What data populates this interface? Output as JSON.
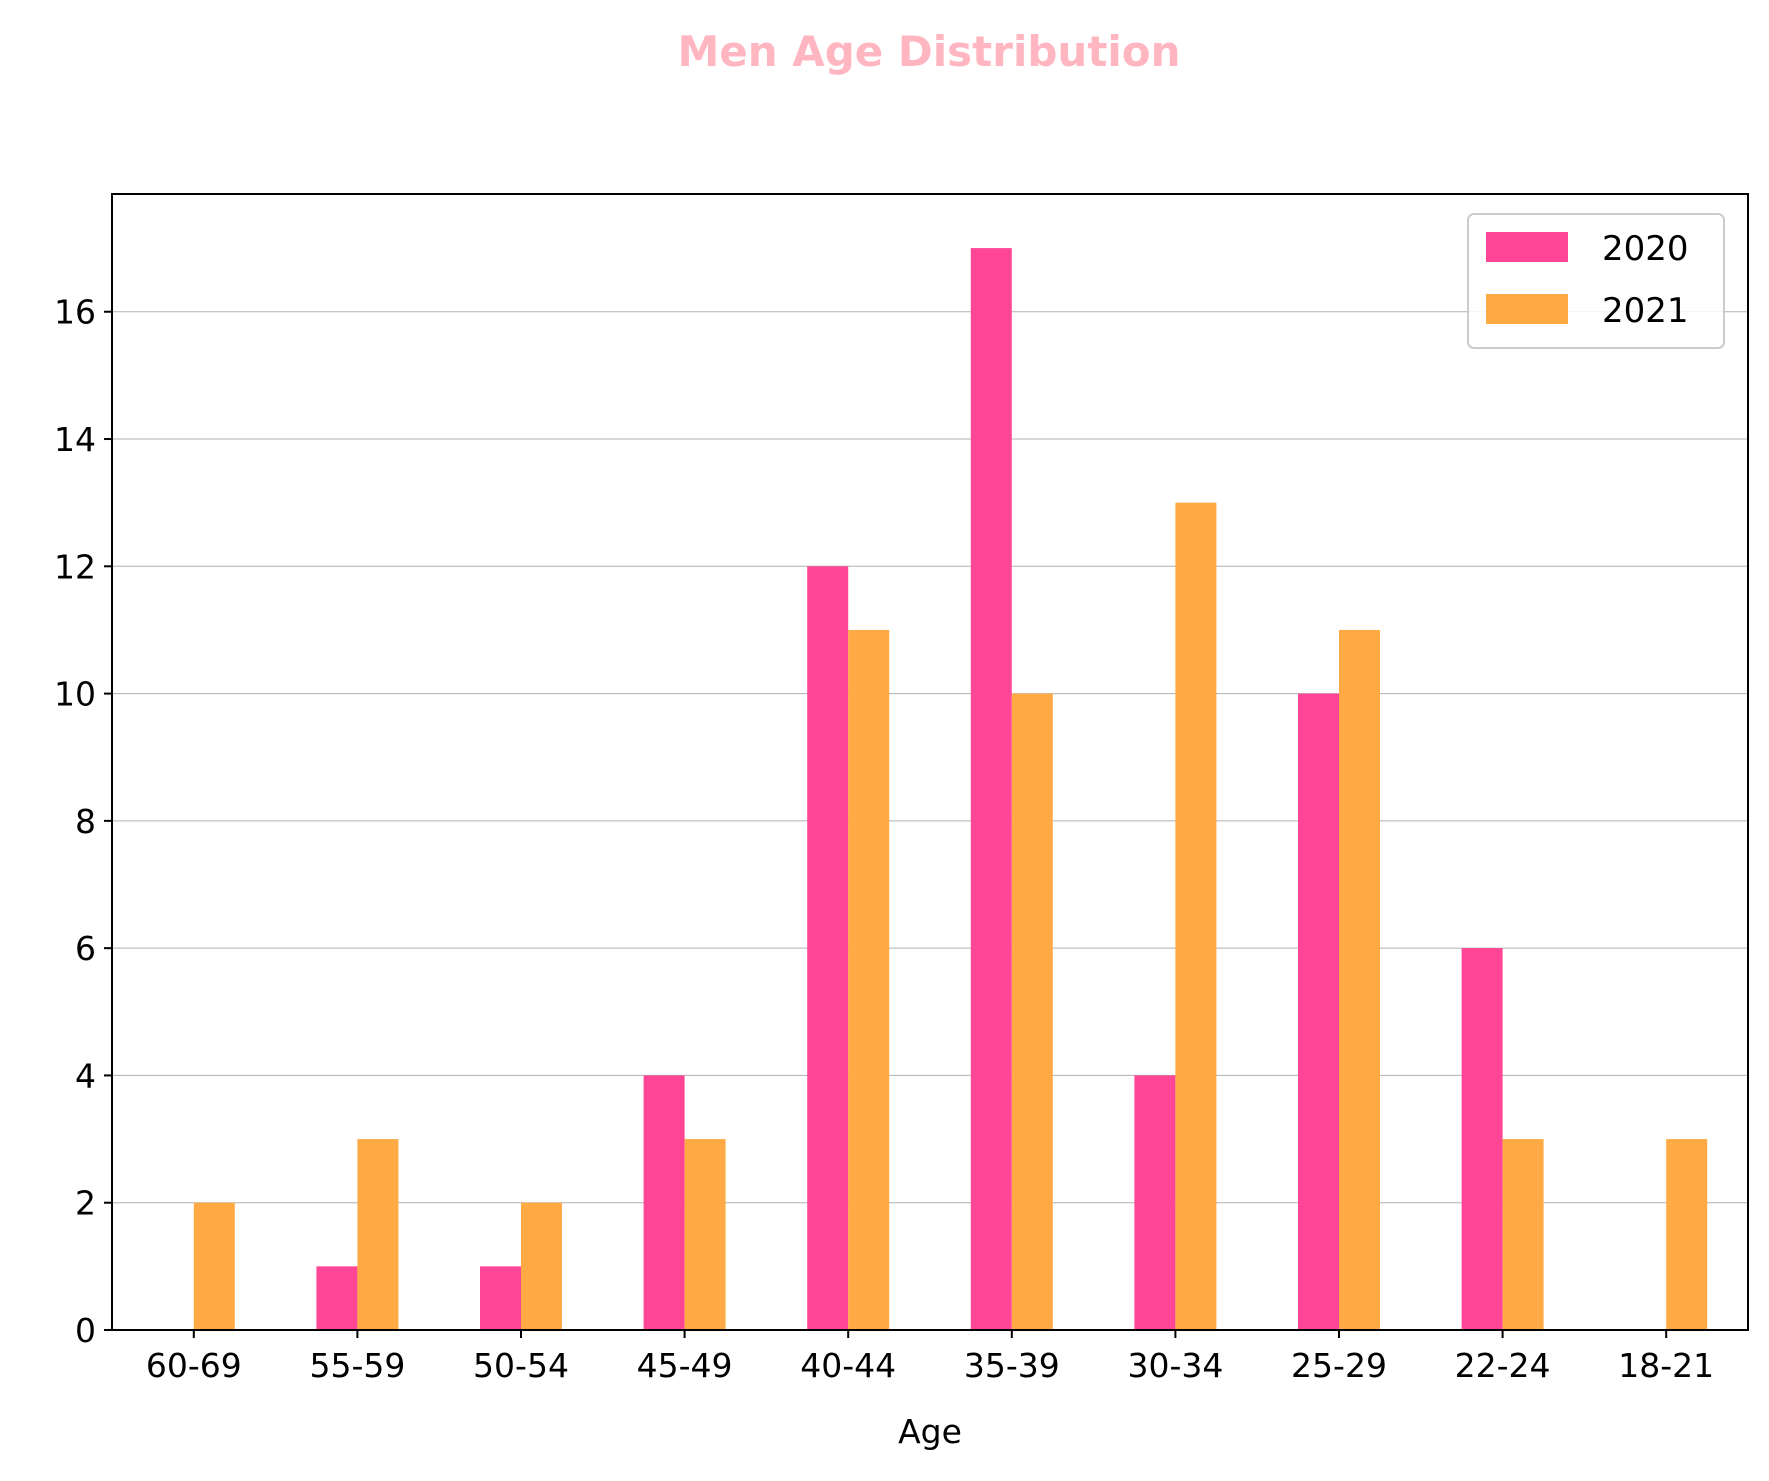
{
  "colors": {
    "title": "#ffb6c1",
    "series_2020": "#ff4595",
    "series_2021": "#ffaa45",
    "grid": "#b0b0b0",
    "axes": "#000000"
  },
  "chart_data": {
    "type": "bar",
    "title": "Men Age Distribution",
    "xlabel": "Age",
    "ylabel": "",
    "categories": [
      "60-69",
      "55-59",
      "50-54",
      "45-49",
      "40-44",
      "35-39",
      "30-34",
      "25-29",
      "22-24",
      "18-21"
    ],
    "series": [
      {
        "name": "2020",
        "values": [
          0,
          1,
          1,
          4,
          12,
          17,
          4,
          10,
          6,
          0
        ]
      },
      {
        "name": "2021",
        "values": [
          2,
          3,
          2,
          3,
          11,
          10,
          13,
          11,
          3,
          3
        ]
      }
    ],
    "ylim": [
      0,
      17.85
    ],
    "yticks": [
      0,
      2,
      4,
      6,
      8,
      10,
      12,
      14,
      16
    ],
    "grid": "y-major",
    "legend_position": "top-right"
  }
}
